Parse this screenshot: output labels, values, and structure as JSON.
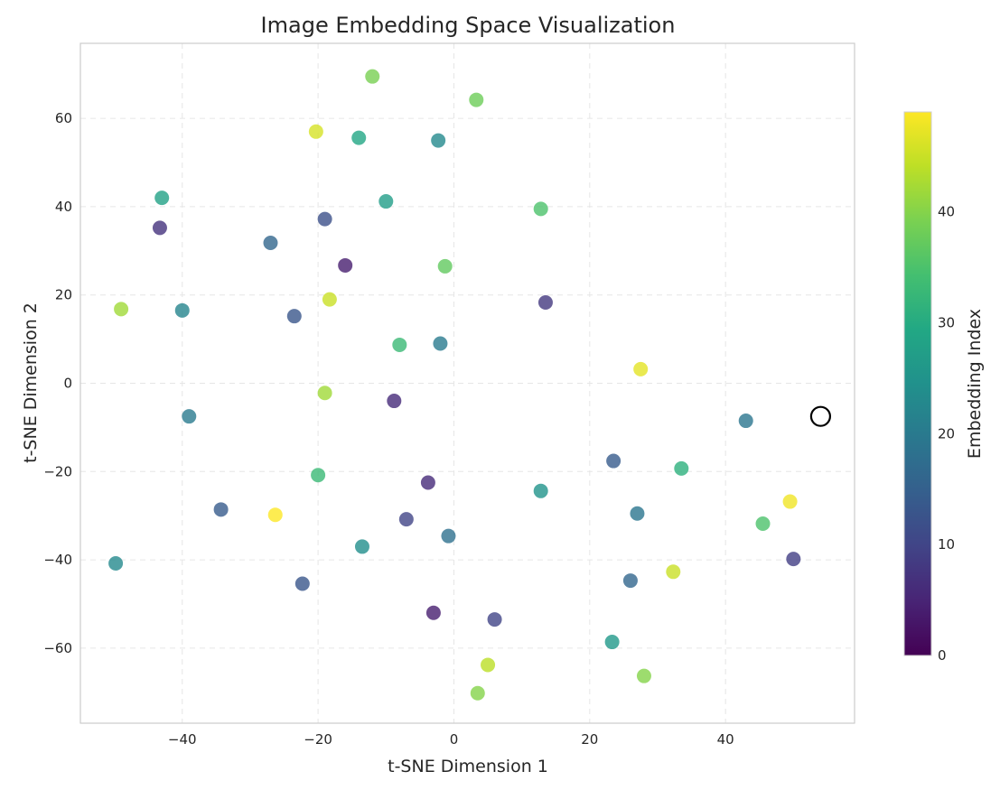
{
  "chart_data": {
    "type": "scatter",
    "title": "Image Embedding Space Visualization",
    "xlabel": "t-SNE Dimension 1",
    "ylabel": "t-SNE Dimension 2",
    "xlim": [
      -55,
      59
    ],
    "ylim": [
      -77,
      77
    ],
    "xticks": [
      -40,
      -20,
      0,
      20,
      40
    ],
    "yticks": [
      -60,
      -40,
      -20,
      0,
      20,
      40,
      60
    ],
    "grid": true,
    "colormap": "viridis",
    "colorbar": {
      "label": "Embedding Index",
      "range": [
        0,
        49
      ],
      "ticks": [
        0,
        10,
        20,
        30,
        40
      ]
    },
    "points": [
      {
        "x": -12.0,
        "y": 69.5,
        "c": 39
      },
      {
        "x": 3.3,
        "y": 64.2,
        "c": 38
      },
      {
        "x": -20.3,
        "y": 57.0,
        "c": 46
      },
      {
        "x": -14.0,
        "y": 55.6,
        "c": 29
      },
      {
        "x": -2.3,
        "y": 55.0,
        "c": 23
      },
      {
        "x": -43.0,
        "y": 42.0,
        "c": 28
      },
      {
        "x": -10.0,
        "y": 41.2,
        "c": 27
      },
      {
        "x": 12.8,
        "y": 39.5,
        "c": 35
      },
      {
        "x": -43.3,
        "y": 35.2,
        "c": 7
      },
      {
        "x": -19.0,
        "y": 37.2,
        "c": 12
      },
      {
        "x": -27.0,
        "y": 31.8,
        "c": 16
      },
      {
        "x": -16.0,
        "y": 26.7,
        "c": 4
      },
      {
        "x": -1.3,
        "y": 26.5,
        "c": 37
      },
      {
        "x": 13.5,
        "y": 18.3,
        "c": 8
      },
      {
        "x": -18.3,
        "y": 19.0,
        "c": 45
      },
      {
        "x": -49.0,
        "y": 16.8,
        "c": 42
      },
      {
        "x": -40.0,
        "y": 16.5,
        "c": 22
      },
      {
        "x": -23.5,
        "y": 15.2,
        "c": 13
      },
      {
        "x": -8.0,
        "y": 8.7,
        "c": 33
      },
      {
        "x": -2.0,
        "y": 9.0,
        "c": 20
      },
      {
        "x": 27.5,
        "y": 3.2,
        "c": 47
      },
      {
        "x": -19.0,
        "y": -2.2,
        "c": 42
      },
      {
        "x": -8.8,
        "y": -4.0,
        "c": 6
      },
      {
        "x": -39.0,
        "y": -7.5,
        "c": 20
      },
      {
        "x": 43.0,
        "y": -8.5,
        "c": 19
      },
      {
        "x": 23.5,
        "y": -17.6,
        "c": 14
      },
      {
        "x": 33.5,
        "y": -19.3,
        "c": 31
      },
      {
        "x": -20.0,
        "y": -20.8,
        "c": 33
      },
      {
        "x": -3.8,
        "y": -22.5,
        "c": 6
      },
      {
        "x": 12.8,
        "y": -24.4,
        "c": 25
      },
      {
        "x": 49.5,
        "y": -26.8,
        "c": 48
      },
      {
        "x": -34.3,
        "y": -28.6,
        "c": 14
      },
      {
        "x": -26.3,
        "y": -29.8,
        "c": 49
      },
      {
        "x": 27.0,
        "y": -29.5,
        "c": 19
      },
      {
        "x": -7.0,
        "y": -30.8,
        "c": 10
      },
      {
        "x": 45.5,
        "y": -31.8,
        "c": 35
      },
      {
        "x": -0.8,
        "y": -34.6,
        "c": 18
      },
      {
        "x": -13.5,
        "y": -37.0,
        "c": 24
      },
      {
        "x": 50.0,
        "y": -39.8,
        "c": 9
      },
      {
        "x": -49.8,
        "y": -40.8,
        "c": 23
      },
      {
        "x": 32.3,
        "y": -42.7,
        "c": 45
      },
      {
        "x": -22.3,
        "y": -45.4,
        "c": 13
      },
      {
        "x": 26.0,
        "y": -44.7,
        "c": 16
      },
      {
        "x": -3.0,
        "y": -52.0,
        "c": 4
      },
      {
        "x": 6.0,
        "y": -53.5,
        "c": 10
      },
      {
        "x": 23.3,
        "y": -58.6,
        "c": 26
      },
      {
        "x": 5.0,
        "y": -63.8,
        "c": 44
      },
      {
        "x": 28.0,
        "y": -66.3,
        "c": 40
      },
      {
        "x": 3.5,
        "y": -70.2,
        "c": 40
      }
    ],
    "highlight": {
      "x": 54.0,
      "y": -7.5
    }
  }
}
